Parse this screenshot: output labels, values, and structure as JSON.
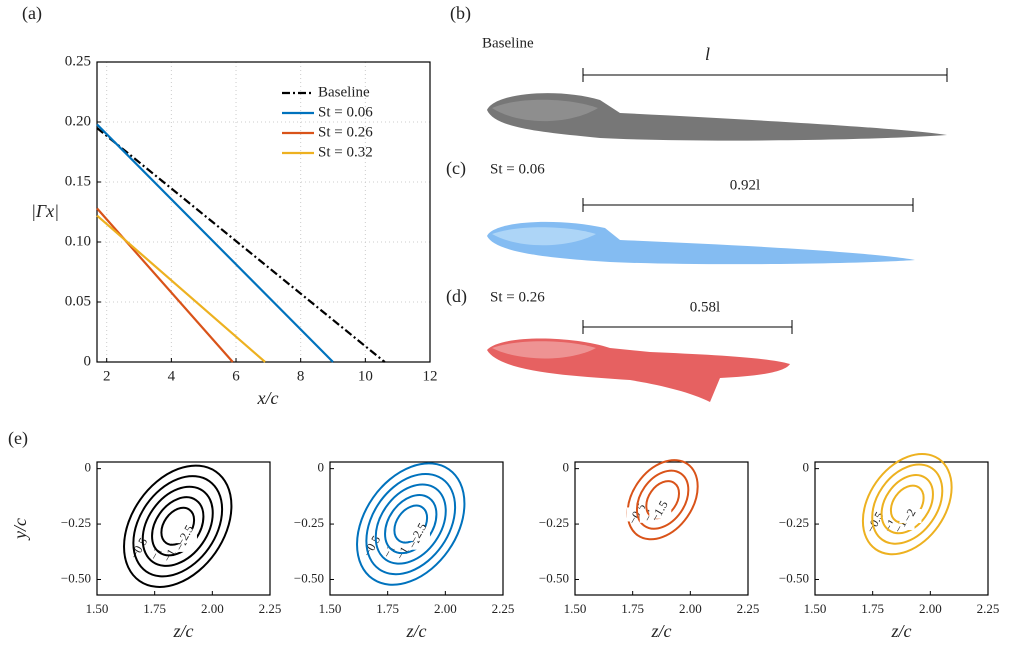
{
  "chart_data": [
    {
      "type": "line",
      "label": "(a)",
      "xlabel": "x/c",
      "ylabel": "|Γx|",
      "xlim": [
        1.7,
        12
      ],
      "ylim": [
        0,
        0.25
      ],
      "xticks": [
        2,
        4,
        6,
        8,
        10,
        12
      ],
      "yticks": [
        0,
        0.05,
        {
          "value": 0.1,
          "label": "0.10"
        },
        0.15,
        {
          "value": 0.2,
          "label": "0.20"
        },
        0.25
      ],
      "grid": true,
      "legend": "upper right",
      "series": [
        {
          "name": "Baseline",
          "color": "#000000",
          "dash": "dashdot",
          "x": [
            1.7,
            10.6
          ],
          "values": [
            0.195,
            0
          ]
        },
        {
          "name": "St = 0.06",
          "color": "#0072BD",
          "x": [
            1.7,
            9
          ],
          "values": [
            0.198,
            0
          ]
        },
        {
          "name": "St = 0.26",
          "color": "#D95319",
          "x": [
            1.7,
            5.9
          ],
          "values": [
            0.128,
            0
          ]
        },
        {
          "name": "St = 0.32",
          "color": "#EDB120",
          "x": [
            1.7,
            6.9
          ],
          "values": [
            0.122,
            0
          ]
        }
      ]
    },
    {
      "type": "contour",
      "label": "(e)",
      "xlabel": "z/c",
      "ylabel": "y/c",
      "color": "#000000",
      "xlim": [
        1.5,
        2.25
      ],
      "ylim": [
        -0.57,
        0.03
      ],
      "xticks": [
        {
          "value": 1.5,
          "label": "1.50"
        },
        1.75,
        {
          "value": 2,
          "label": "2.00"
        },
        2.25
      ],
      "yticks": [
        0,
        {
          "value": -0.25,
          "label": "−0.25"
        },
        {
          "value": -0.5,
          "label": "−0.50"
        }
      ],
      "levels": [
        {
          "value": -0.5,
          "label": "−0.5"
        },
        {
          "value": -1,
          "label": "−1"
        },
        {
          "value": -1.5,
          "label": "−1.5"
        },
        {
          "value": -2,
          "label": "−2"
        },
        {
          "value": -2.5,
          "label": "−2.5"
        }
      ]
    },
    {
      "type": "contour",
      "xlabel": "z/c",
      "color": "#0072BD",
      "xlim": [
        1.5,
        2.25
      ],
      "ylim": [
        -0.57,
        0.03
      ],
      "xticks": [
        {
          "value": 1.5,
          "label": "1.50"
        },
        1.75,
        {
          "value": 2,
          "label": "2.00"
        },
        2.25
      ],
      "yticks": [
        0,
        {
          "value": -0.25,
          "label": "−0.25"
        },
        {
          "value": -0.5,
          "label": "−0.50"
        }
      ],
      "levels": [
        {
          "value": -0.5,
          "label": "−0.5"
        },
        {
          "value": -1,
          "label": "−1"
        },
        {
          "value": -1.5,
          "label": "−1.5"
        },
        {
          "value": -2,
          "label": "−2"
        },
        {
          "value": -2.5,
          "label": "−2.5"
        }
      ]
    },
    {
      "type": "contour",
      "xlabel": "z/c",
      "color": "#D95319",
      "xlim": [
        1.5,
        2.25
      ],
      "ylim": [
        -0.57,
        0.03
      ],
      "xticks": [
        {
          "value": 1.5,
          "label": "1.50"
        },
        1.75,
        {
          "value": 2,
          "label": "2.00"
        },
        2.25
      ],
      "yticks": [
        0,
        {
          "value": -0.25,
          "label": "−0.25"
        },
        {
          "value": -0.5,
          "label": "−0.50"
        }
      ],
      "levels": [
        {
          "value": -0.5,
          "label": "−0.5"
        },
        {
          "value": -1,
          "label": "−1"
        },
        {
          "value": -1.5,
          "label": "−1.5"
        }
      ]
    },
    {
      "type": "contour",
      "xlabel": "z/c",
      "color": "#EDB120",
      "xlim": [
        1.5,
        2.25
      ],
      "ylim": [
        -0.57,
        0.03
      ],
      "xticks": [
        {
          "value": 1.5,
          "label": "1.50"
        },
        1.75,
        {
          "value": 2,
          "label": "2.00"
        },
        2.25
      ],
      "yticks": [
        0,
        {
          "value": -0.25,
          "label": "−0.25"
        },
        {
          "value": -0.5,
          "label": "−0.50"
        }
      ],
      "levels": [
        {
          "value": -0.5,
          "label": "−0.5"
        },
        {
          "value": -1,
          "label": "−1"
        },
        {
          "value": -1.5,
          "label": "−1.5"
        },
        {
          "value": -2,
          "label": "−2"
        }
      ]
    }
  ],
  "plumes": {
    "baseline": {
      "label": "(b)",
      "name": "Baseline",
      "length": "l"
    },
    "st006": {
      "label": "(c)",
      "name": "St = 0.06",
      "length": "0.92l"
    },
    "st026": {
      "label": "(d)",
      "name": "St = 0.26",
      "length": "0.58l"
    }
  }
}
